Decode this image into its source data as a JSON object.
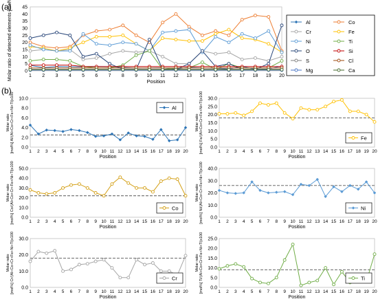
{
  "figure": {
    "panel_a_label": "(a)",
    "panel_b_label": "(b)"
  },
  "chart_data": [
    {
      "type": "line",
      "panel": "a",
      "xlabel": "Position",
      "ylabel": "Molar ratio of detected elements [mol%]",
      "x": [
        1,
        2,
        3,
        4,
        5,
        6,
        7,
        8,
        9,
        10,
        11,
        12,
        13,
        14,
        15,
        16,
        17,
        18,
        19,
        20
      ],
      "xlim": [
        1,
        20
      ],
      "ylim": [
        0,
        45
      ],
      "yticks": [
        0,
        5,
        10,
        15,
        20,
        25,
        30,
        35,
        40,
        45
      ],
      "legend_position": "right",
      "series": [
        {
          "name": "Al",
          "color": "#2e75b6",
          "marker": "diamond",
          "values": [
            3.8,
            2.3,
            3.0,
            2.9,
            2.8,
            3.2,
            2.9,
            2.4,
            1.9,
            2.0,
            2.2,
            1.2,
            2.5,
            2.0,
            1.8,
            1.3,
            3.1,
            1.1,
            1.3,
            3.3
          ]
        },
        {
          "name": "Co",
          "color": "#ed7d31",
          "marker": "circle",
          "values": [
            20,
            17,
            16,
            17,
            25,
            28,
            29,
            32,
            25,
            20,
            34,
            40,
            31,
            25,
            28,
            25,
            36,
            39,
            38,
            14
          ]
        },
        {
          "name": "Cr",
          "color": "#a5a5a5",
          "marker": "circle",
          "values": [
            14,
            15,
            14,
            15,
            8,
            9,
            12,
            14,
            13,
            14,
            10,
            5,
            5,
            14,
            12,
            13,
            8,
            9,
            7,
            10
          ]
        },
        {
          "name": "Fe",
          "color": "#ffc000",
          "marker": "circle",
          "values": [
            17,
            16,
            14,
            16,
            20,
            24,
            24,
            25,
            19,
            14,
            23,
            22,
            21,
            21,
            26,
            29,
            23,
            22,
            19,
            13
          ]
        },
        {
          "name": "Ni",
          "color": "#5b9bd5",
          "marker": "circle",
          "values": [
            18,
            15,
            14,
            14,
            26,
            19,
            18,
            20,
            19,
            14,
            27,
            28,
            29,
            13,
            24,
            20,
            26,
            23,
            28,
            13
          ]
        },
        {
          "name": "Ti",
          "color": "#70ad47",
          "marker": "circle",
          "values": [
            7,
            8,
            8,
            7,
            3,
            2,
            2,
            4,
            11,
            14,
            1,
            2,
            2,
            6,
            1,
            5,
            2,
            2,
            2,
            7
          ]
        },
        {
          "name": "O",
          "color": "#264478",
          "marker": "circle",
          "values": [
            23,
            25,
            27,
            25,
            10,
            12,
            5,
            1,
            1,
            22,
            1,
            1,
            5,
            14,
            3,
            5,
            1,
            1,
            5,
            32
          ]
        },
        {
          "name": "Si",
          "color": "#c00000",
          "marker": "circle",
          "values": [
            4,
            4,
            4,
            4,
            3,
            3,
            3,
            3,
            3,
            3,
            3,
            3,
            3,
            3,
            3,
            3,
            3,
            3,
            3,
            3
          ]
        },
        {
          "name": "S",
          "color": "#7f7f7f",
          "marker": "circle",
          "values": [
            1,
            1,
            1,
            1,
            1,
            1,
            1,
            1,
            1,
            1,
            1,
            1,
            1,
            1,
            1,
            1,
            1,
            1,
            1,
            1
          ]
        },
        {
          "name": "Cl",
          "color": "#9e480e",
          "marker": "circle",
          "values": [
            2,
            2,
            2,
            2,
            2,
            2,
            2,
            2,
            2,
            2,
            2,
            2,
            2,
            2,
            2,
            2,
            2,
            2,
            2,
            2
          ]
        },
        {
          "name": "Mg",
          "color": "#4472c4",
          "marker": "circle",
          "values": [
            0.5,
            0.5,
            0.5,
            0.5,
            0.5,
            0.5,
            0.5,
            0.5,
            0.5,
            0.5,
            0.5,
            0.5,
            0.5,
            0.5,
            0.5,
            0.5,
            0.5,
            0.5,
            0.5,
            0.5
          ]
        },
        {
          "name": "Ca",
          "color": "#43682b",
          "marker": "circle",
          "values": [
            0.8,
            0.8,
            0.8,
            0.8,
            0.8,
            0.8,
            0.8,
            0.8,
            0.8,
            0.8,
            0.8,
            0.8,
            0.8,
            0.8,
            0.8,
            0.8,
            0.8,
            0.8,
            0.8,
            0.8
          ]
        }
      ]
    },
    {
      "type": "line",
      "panel": "b",
      "grid_col": 0,
      "grid_row": 0,
      "xlabel": "Position",
      "ylabel": "Molar ratio [mol%] Al/(Al+Co+Cr+Fe+Ni+Ti)x100",
      "x": [
        1,
        2,
        3,
        4,
        5,
        6,
        7,
        8,
        9,
        10,
        11,
        12,
        13,
        14,
        15,
        16,
        17,
        18,
        19,
        20
      ],
      "xlim": [
        1,
        20
      ],
      "ylim": [
        0,
        10
      ],
      "yticks": [
        0,
        2,
        4,
        6,
        8,
        10
      ],
      "reference_line": 2.5,
      "series": [
        {
          "name": "Al",
          "color": "#2e75b6",
          "marker": "diamond",
          "values": [
            4.5,
            2.7,
            3.5,
            3.4,
            3.2,
            3.6,
            3.4,
            3.0,
            2.2,
            2.3,
            2.7,
            1.5,
            2.9,
            2.3,
            2.2,
            1.6,
            3.6,
            1.3,
            1.5,
            4.0
          ]
        }
      ]
    },
    {
      "type": "line",
      "panel": "b",
      "grid_col": 1,
      "grid_row": 0,
      "xlabel": "Position",
      "ylabel": "Molar ratio [mol%] Fe/(Al+Co+Cr+Fe+Ni+Ti)x100",
      "x": [
        1,
        2,
        3,
        4,
        5,
        6,
        7,
        8,
        9,
        10,
        11,
        12,
        13,
        14,
        15,
        16,
        17,
        18,
        19,
        20
      ],
      "xlim": [
        1,
        20
      ],
      "ylim": [
        0,
        30
      ],
      "yticks": [
        0,
        5,
        10,
        15,
        20,
        25,
        30
      ],
      "reference_line": 18,
      "series": [
        {
          "name": "Fe",
          "color": "#ffc000",
          "marker": "circle",
          "values": [
            20.5,
            20.5,
            21,
            19.5,
            22,
            27,
            26,
            27,
            21,
            17.5,
            24,
            23,
            23,
            25,
            28,
            29,
            22,
            22,
            20,
            15.5
          ]
        }
      ]
    },
    {
      "type": "line",
      "panel": "b",
      "grid_col": 0,
      "grid_row": 1,
      "xlabel": "Position",
      "ylabel": "Molar ratio [mol%] Co/(Al+Co+Cr+Fe+Ni+Ti)x100",
      "x": [
        1,
        2,
        3,
        4,
        5,
        6,
        7,
        8,
        9,
        10,
        11,
        12,
        13,
        14,
        15,
        16,
        17,
        18,
        19,
        20
      ],
      "xlim": [
        1,
        20
      ],
      "ylim": [
        0,
        50
      ],
      "yticks": [
        0,
        10,
        20,
        30,
        40,
        50
      ],
      "reference_line": 22,
      "series": [
        {
          "name": "Co",
          "color": "#d4a017",
          "marker": "circle",
          "values": [
            28,
            25,
            24,
            25,
            30,
            33,
            34,
            30,
            25,
            22,
            34,
            41,
            35,
            30,
            30,
            26,
            37,
            40,
            39,
            22
          ]
        }
      ]
    },
    {
      "type": "line",
      "panel": "b",
      "grid_col": 1,
      "grid_row": 1,
      "xlabel": "Position",
      "ylabel": "Molar ratio [mol%] Ni/(Al+Co+Cr+Fe+Ni+Ti)x100",
      "x": [
        1,
        2,
        3,
        4,
        5,
        6,
        7,
        8,
        9,
        10,
        11,
        12,
        13,
        14,
        15,
        16,
        17,
        18,
        19,
        20
      ],
      "xlim": [
        1,
        20
      ],
      "ylim": [
        0,
        40
      ],
      "yticks": [
        0,
        10,
        20,
        30,
        40
      ],
      "reference_line": 26,
      "series": [
        {
          "name": "Ni",
          "color": "#5b9bd5",
          "marker": "diamond",
          "values": [
            22,
            20,
            19.5,
            20,
            29,
            22,
            20,
            20.5,
            21,
            18.5,
            27,
            26,
            31,
            17,
            25,
            21,
            26,
            23,
            29,
            20
          ]
        }
      ]
    },
    {
      "type": "line",
      "panel": "b",
      "grid_col": 0,
      "grid_row": 2,
      "xlabel": "Position",
      "ylabel": "Molar ratio [mol%] Cr/(Al+Co+Cr+Fe+Ni+Ti)x100",
      "x": [
        1,
        2,
        3,
        4,
        5,
        6,
        7,
        8,
        9,
        10,
        11,
        12,
        13,
        14,
        15,
        16,
        17,
        18,
        19,
        20
      ],
      "xlim": [
        1,
        20
      ],
      "ylim": [
        0,
        30
      ],
      "yticks": [
        0,
        10,
        20,
        30
      ],
      "reference_line": 18,
      "series": [
        {
          "name": "Cr",
          "color": "#a5a5a5",
          "marker": "circle",
          "values": [
            16,
            22,
            21,
            22.5,
            10,
            11,
            14,
            14.5,
            16,
            17,
            12,
            6,
            6,
            17,
            14,
            15,
            10,
            10,
            7.5,
            19.5
          ]
        }
      ]
    },
    {
      "type": "line",
      "panel": "b",
      "grid_col": 1,
      "grid_row": 2,
      "xlabel": "Position",
      "ylabel": "Molar ratio [mol%] Ti/(Al+Co+Cr+Fe+Ni+Ti)x100",
      "x": [
        1,
        2,
        3,
        4,
        5,
        6,
        7,
        8,
        9,
        10,
        11,
        12,
        13,
        14,
        15,
        16,
        17,
        18,
        19,
        20
      ],
      "xlim": [
        1,
        20
      ],
      "ylim": [
        0,
        25
      ],
      "yticks": [
        0,
        5,
        10,
        15,
        20,
        25
      ],
      "reference_line": 9,
      "series": [
        {
          "name": "Ti",
          "color": "#70ad47",
          "marker": "circle",
          "values": [
            9.5,
            11,
            12,
            10.5,
            4.5,
            2.5,
            2,
            5,
            14,
            22,
            1,
            2.5,
            3.5,
            10,
            1.5,
            8,
            2.5,
            3.5,
            3,
            17
          ]
        }
      ]
    }
  ]
}
